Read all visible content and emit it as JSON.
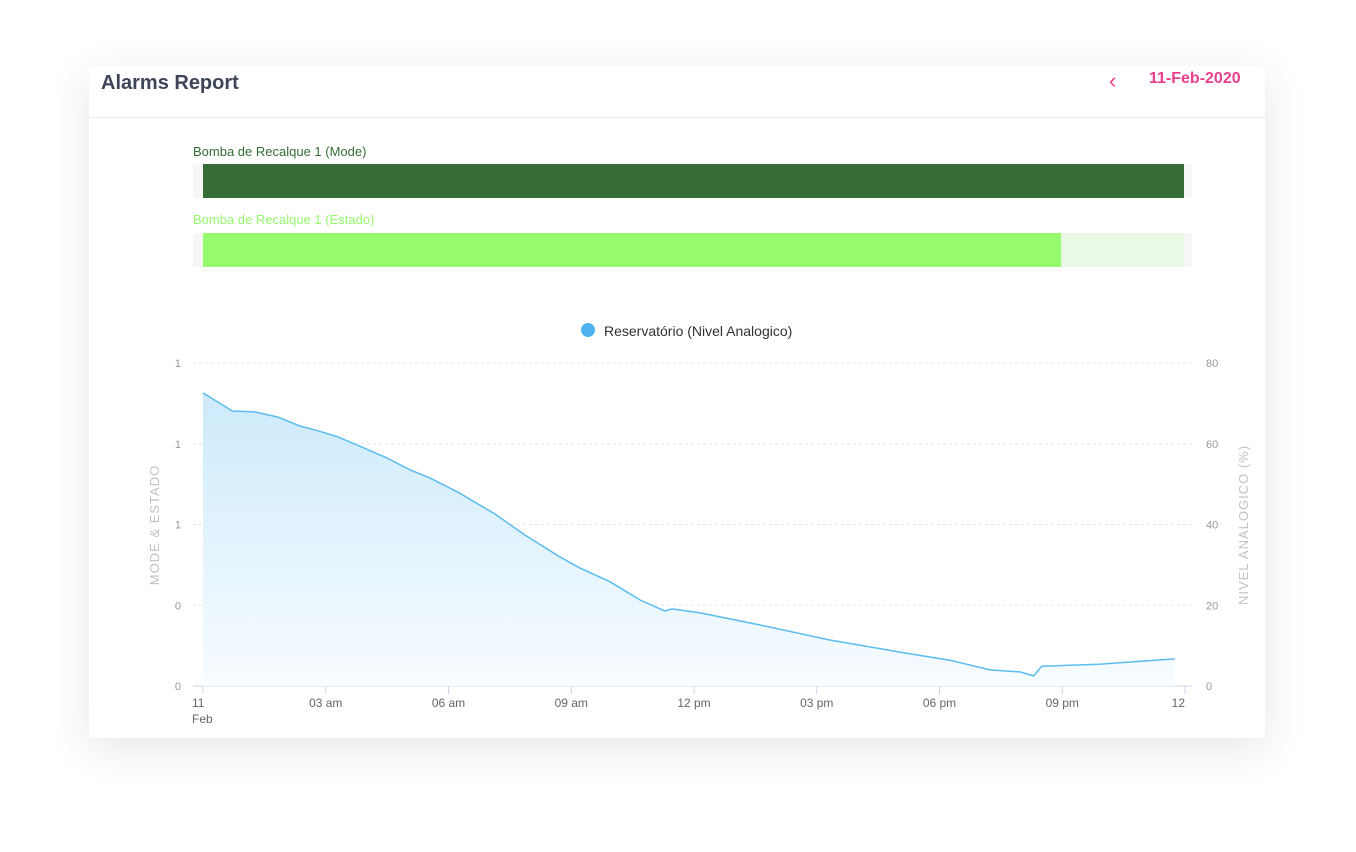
{
  "header": {
    "title": "Alarms Report",
    "date": "11-Feb-2020",
    "back_icon": "chevron-left-icon"
  },
  "colors": {
    "accent": "#e83e8c",
    "mode": "#366d36",
    "estado": "#95fa6e",
    "estado_off": "#eaf9e5",
    "line": "#5bbcf0"
  },
  "status_bars": [
    {
      "label": "Bomba de Recalque 1 (Mode)",
      "segments": [
        {
          "from": "00:00",
          "to": "24:00",
          "state": "on"
        }
      ]
    },
    {
      "label": "Bomba de Recalque 1 (Estado)",
      "segments": [
        {
          "from": "00:00",
          "to": "21:00",
          "state": "on"
        },
        {
          "from": "21:00",
          "to": "24:00",
          "state": "off"
        }
      ]
    }
  ],
  "chart_data": {
    "type": "area",
    "legend": "Reservatório (Nivel Analogico)",
    "legend_position": "top",
    "ylabel_left": "MODE & ESTADO",
    "ylabel_right": "NIVEL ANALOGICO (%)",
    "left_ticks": [
      "0",
      "0",
      "1",
      "1",
      "1"
    ],
    "right_ticks": [
      "0",
      "20",
      "40",
      "60",
      "80"
    ],
    "ylim_right": [
      0,
      80
    ],
    "x_ticks": [
      "11\nFeb",
      "03 am",
      "06 am",
      "09 am",
      "12 pm",
      "03 pm",
      "06 pm",
      "09 pm",
      "12"
    ],
    "x_tick_hours": [
      0,
      3,
      6,
      9,
      12,
      15,
      18,
      21,
      24
    ],
    "grid": true,
    "series": [
      {
        "name": "Reservatório (Nivel Analogico)",
        "axis": "right",
        "points": [
          [
            "00:00",
            72.6
          ],
          [
            "00:43",
            68.1
          ],
          [
            "01:16",
            67.9
          ],
          [
            "01:50",
            66.6
          ],
          [
            "02:22",
            64.4
          ],
          [
            "02:49",
            63.2
          ],
          [
            "03:18",
            61.7
          ],
          [
            "03:50",
            59.4
          ],
          [
            "04:27",
            56.7
          ],
          [
            "05:04",
            53.5
          ],
          [
            "05:33",
            51.5
          ],
          [
            "06:14",
            48.0
          ],
          [
            "07:08",
            42.6
          ],
          [
            "07:52",
            37.4
          ],
          [
            "08:43",
            32.0
          ],
          [
            "09:13",
            29.2
          ],
          [
            "09:57",
            25.8
          ],
          [
            "10:41",
            21.3
          ],
          [
            "11:17",
            18.6
          ],
          [
            "11:28",
            19.1
          ],
          [
            "12:09",
            18.1
          ],
          [
            "13:37",
            15.1
          ],
          [
            "15:19",
            11.4
          ],
          [
            "17:02",
            8.4
          ],
          [
            "18:15",
            6.4
          ],
          [
            "19:14",
            4.0
          ],
          [
            "19:58",
            3.5
          ],
          [
            "20:18",
            2.5
          ],
          [
            "20:30",
            4.9
          ],
          [
            "21:54",
            5.4
          ],
          [
            "23:45",
            6.7
          ]
        ]
      }
    ]
  }
}
